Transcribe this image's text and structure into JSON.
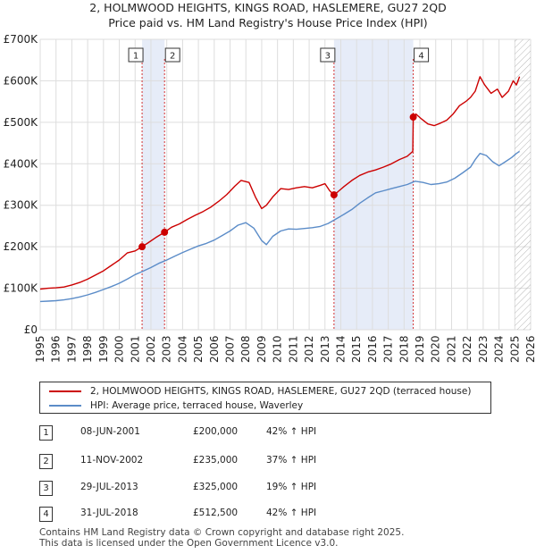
{
  "header": {
    "title": "2, HOLMWOOD HEIGHTS, KINGS ROAD, HASLEMERE, GU27 2QD",
    "subtitle": "Price paid vs. HM Land Registry's House Price Index (HPI)"
  },
  "colors": {
    "price_paid": "#cc0000",
    "hpi": "#5b8cc8",
    "band": "#dde6f5",
    "grid": "#dddddd"
  },
  "chart_data": {
    "type": "line",
    "title": "2, HOLMWOOD HEIGHTS, KINGS ROAD, HASLEMERE, GU27 2QD",
    "subtitle": "Price paid vs. HM Land Registry's House Price Index (HPI)",
    "xlim": [
      1995,
      2026
    ],
    "ylim": [
      0,
      700000
    ],
    "x_ticks": [
      1995,
      1996,
      1997,
      1998,
      1999,
      2000,
      2001,
      2002,
      2003,
      2004,
      2005,
      2006,
      2007,
      2008,
      2009,
      2010,
      2011,
      2012,
      2013,
      2014,
      2015,
      2016,
      2017,
      2018,
      2019,
      2020,
      2021,
      2022,
      2023,
      2024,
      2025,
      2026
    ],
    "y_ticks": [
      0,
      100000,
      200000,
      300000,
      400000,
      500000,
      600000,
      700000
    ],
    "y_tick_labels": [
      "£0",
      "£100K",
      "£200K",
      "£300K",
      "£400K",
      "£500K",
      "£600K",
      "£700K"
    ],
    "grid": true,
    "series": [
      {
        "name": "2, HOLMWOOD HEIGHTS, KINGS ROAD, HASLEMERE, GU27 2QD (terraced house)",
        "color": "#cc0000",
        "x": [
          1995,
          1995.5,
          1996,
          1996.5,
          1997,
          1997.5,
          1998,
          1998.5,
          1999,
          1999.5,
          2000,
          2000.5,
          2001,
          2001.44,
          2001.8,
          2002.3,
          2002.86,
          2003.3,
          2003.8,
          2004.3,
          2004.8,
          2005.3,
          2005.8,
          2006.3,
          2006.8,
          2007.3,
          2007.7,
          2008.2,
          2008.6,
          2009.0,
          2009.3,
          2009.7,
          2010.2,
          2010.7,
          2011.2,
          2011.7,
          2012.2,
          2012.7,
          2013.0,
          2013.3,
          2013.57,
          2013.8,
          2014.2,
          2014.7,
          2015.2,
          2015.7,
          2016.2,
          2016.7,
          2017.2,
          2017.7,
          2018.2,
          2018.55,
          2018.58,
          2018.75,
          2019.1,
          2019.5,
          2019.9,
          2020.3,
          2020.7,
          2021.1,
          2021.5,
          2021.9,
          2022.2,
          2022.5,
          2022.8,
          2023.1,
          2023.5,
          2023.9,
          2024.2,
          2024.6,
          2024.9,
          2025.1,
          2025.3
        ],
        "values": [
          98000,
          100000,
          101000,
          103000,
          108000,
          114000,
          122000,
          132000,
          142000,
          155000,
          168000,
          185000,
          190000,
          200000,
          209000,
          222000,
          235000,
          247000,
          255000,
          266000,
          276000,
          285000,
          296000,
          310000,
          326000,
          346000,
          360000,
          355000,
          320000,
          292000,
          300000,
          320000,
          340000,
          338000,
          342000,
          345000,
          342000,
          348000,
          352000,
          335000,
          325000,
          332000,
          345000,
          360000,
          372000,
          380000,
          385000,
          392000,
          400000,
          410000,
          418000,
          430000,
          512500,
          520000,
          508000,
          496000,
          492000,
          498000,
          505000,
          520000,
          540000,
          550000,
          560000,
          575000,
          610000,
          590000,
          570000,
          580000,
          560000,
          575000,
          600000,
          590000,
          610000
        ]
      },
      {
        "name": "HPI: Average price, terraced house, Waverley",
        "color": "#5b8cc8",
        "x": [
          1995,
          1995.5,
          1996,
          1996.5,
          1997,
          1997.5,
          1998,
          1998.5,
          1999,
          1999.5,
          2000,
          2000.5,
          2001,
          2001.5,
          2002,
          2002.5,
          2003,
          2003.5,
          2004,
          2004.5,
          2005,
          2005.5,
          2006,
          2006.5,
          2007,
          2007.5,
          2008,
          2008.5,
          2009,
          2009.3,
          2009.7,
          2010.2,
          2010.7,
          2011.2,
          2011.7,
          2012.2,
          2012.7,
          2013.2,
          2013.7,
          2014.2,
          2014.7,
          2015.2,
          2015.7,
          2016.2,
          2016.7,
          2017.2,
          2017.7,
          2018.2,
          2018.7,
          2019.2,
          2019.7,
          2020.2,
          2020.7,
          2021.2,
          2021.7,
          2022.2,
          2022.5,
          2022.8,
          2023.2,
          2023.6,
          2024.0,
          2024.4,
          2024.8,
          2025.1,
          2025.3
        ],
        "values": [
          68000,
          69000,
          70000,
          72000,
          75000,
          79000,
          84000,
          90000,
          97000,
          104000,
          112000,
          122000,
          133000,
          141000,
          150000,
          160000,
          168000,
          177000,
          186000,
          194000,
          202000,
          208000,
          216000,
          227000,
          238000,
          252000,
          258000,
          245000,
          215000,
          205000,
          225000,
          238000,
          243000,
          242000,
          244000,
          246000,
          249000,
          256000,
          267000,
          278000,
          290000,
          305000,
          318000,
          330000,
          335000,
          340000,
          345000,
          350000,
          358000,
          355000,
          350000,
          352000,
          356000,
          365000,
          378000,
          392000,
          410000,
          425000,
          420000,
          405000,
          395000,
          405000,
          415000,
          425000,
          430000
        ]
      }
    ],
    "sales": [
      {
        "label": "1",
        "x": 2001.44,
        "value": 200000
      },
      {
        "label": "2",
        "x": 2002.86,
        "value": 235000
      },
      {
        "label": "3",
        "x": 2013.57,
        "value": 325000
      },
      {
        "label": "4",
        "x": 2018.58,
        "value": 512500
      }
    ],
    "shaded_bands": [
      [
        2001.44,
        2002.86
      ],
      [
        2013.57,
        2018.58
      ]
    ],
    "hatched_from": 2025.0
  },
  "legend": {
    "items": [
      {
        "label": "2, HOLMWOOD HEIGHTS, KINGS ROAD, HASLEMERE, GU27 2QD (terraced house)"
      },
      {
        "label": "HPI: Average price, terraced house, Waverley"
      }
    ]
  },
  "table": {
    "rows": [
      {
        "num": "1",
        "date": "08-JUN-2001",
        "price": "£200,000",
        "hpi": "42% ↑ HPI"
      },
      {
        "num": "2",
        "date": "11-NOV-2002",
        "price": "£235,000",
        "hpi": "37% ↑ HPI"
      },
      {
        "num": "3",
        "date": "29-JUL-2013",
        "price": "£325,000",
        "hpi": "19% ↑ HPI"
      },
      {
        "num": "4",
        "date": "31-JUL-2018",
        "price": "£512,500",
        "hpi": "42% ↑ HPI"
      }
    ]
  },
  "footer": {
    "line1": "Contains HM Land Registry data © Crown copyright and database right 2025.",
    "line2": "This data is licensed under the Open Government Licence v3.0."
  }
}
